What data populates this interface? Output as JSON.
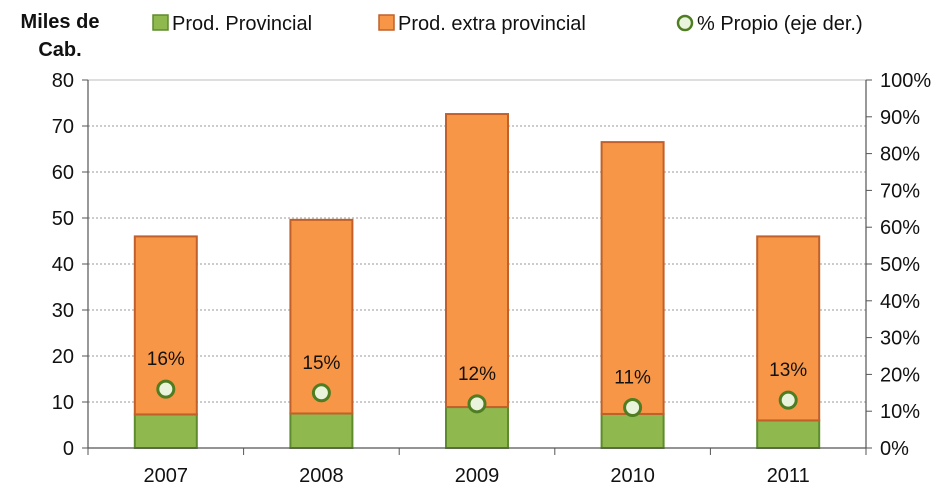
{
  "chart_data": {
    "type": "bar",
    "categories": [
      "2007",
      "2008",
      "2009",
      "2010",
      "2011"
    ],
    "series": [
      {
        "name": "Prod. Provincial",
        "kind": "stacked-bar",
        "axis": "left",
        "values": [
          7.3,
          7.5,
          8.9,
          7.4,
          6.0
        ],
        "color": "#8FB84F"
      },
      {
        "name": "Prod. extra provincial",
        "kind": "stacked-bar",
        "axis": "left",
        "values": [
          38.7,
          42.1,
          63.7,
          59.1,
          40.0
        ],
        "color": "#F79646"
      },
      {
        "name": "% Propio (eje der.)",
        "kind": "point",
        "axis": "right",
        "values": [
          16,
          15,
          12,
          11,
          13
        ],
        "color": "#5A8A2A",
        "labels": [
          "16%",
          "15%",
          "12%",
          "11%",
          "13%"
        ]
      }
    ],
    "ylabel_lines": [
      "Miles de",
      "Cab."
    ],
    "ylim": [
      0,
      80
    ],
    "y_ticks": [
      "0",
      "10",
      "20",
      "30",
      "40",
      "50",
      "60",
      "70",
      "80"
    ],
    "y2lim": [
      0,
      100
    ],
    "y2_ticks": [
      "0%",
      "10%",
      "20%",
      "30%",
      "40%",
      "50%",
      "60%",
      "70%",
      "80%",
      "90%",
      "100%"
    ],
    "grid": true,
    "legend_position": "top"
  },
  "colors": {
    "provincial_fill": "#8FB84F",
    "provincial_edge": "#5E8C2D",
    "extra_fill": "#F79646",
    "extra_edge": "#C0602A",
    "point_fill": "#EAF3DC",
    "point_edge": "#4E7D22"
  }
}
